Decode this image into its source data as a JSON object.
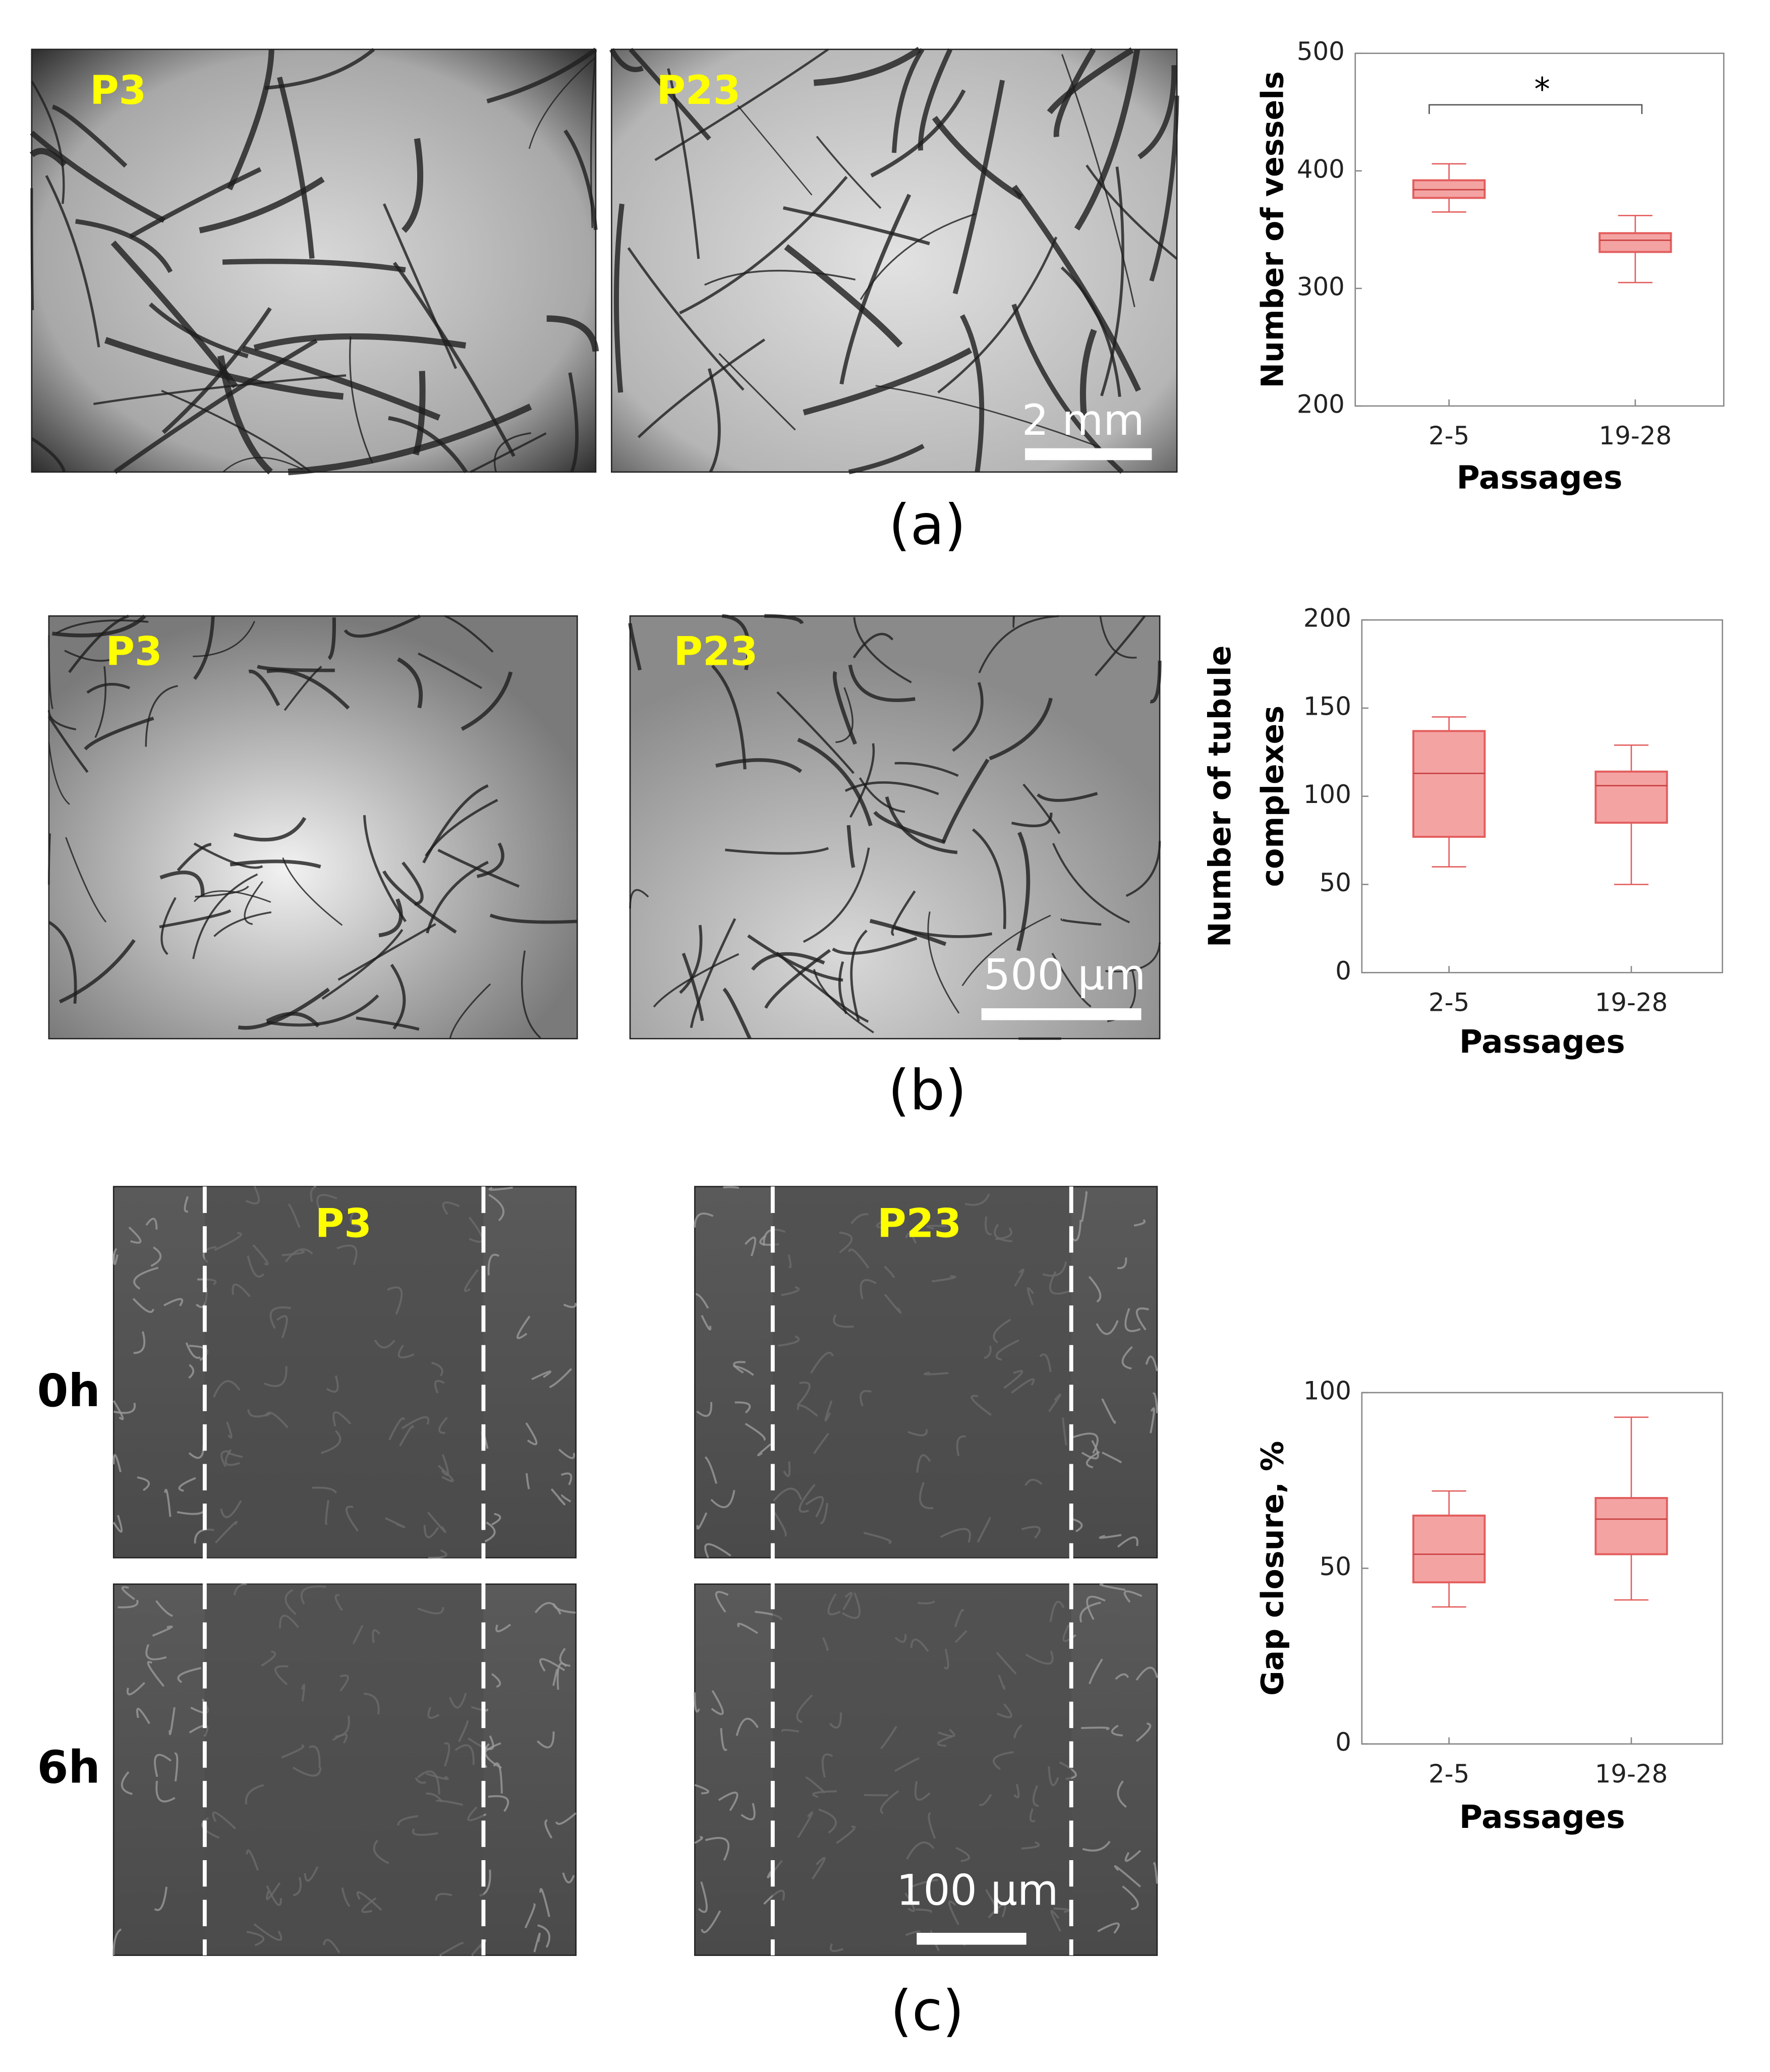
{
  "panels": {
    "a": {
      "label": "(a)",
      "images": [
        {
          "tag": "P3"
        },
        {
          "tag": "P23",
          "scale_bar": "2 mm"
        }
      ]
    },
    "b": {
      "label": "(b)",
      "images": [
        {
          "tag": "P3"
        },
        {
          "tag": "P23",
          "scale_bar": "500 µm"
        }
      ]
    },
    "c": {
      "label": "(c)",
      "rows": [
        "0h",
        "6h"
      ],
      "images": [
        {
          "tag": "P3"
        },
        {
          "tag": "P23",
          "scale_bar": "100 µm"
        }
      ]
    }
  },
  "chart_data": [
    {
      "type": "box",
      "categories": [
        "2-5",
        "19-28"
      ],
      "x_label": "Passages",
      "y_label": [
        "Number of vessels"
      ],
      "ylim": [
        200,
        500
      ],
      "yticks": [
        200,
        300,
        400,
        500
      ],
      "color": "#f4a3a3",
      "edge_color": "#e35d5d",
      "boxes": [
        {
          "whislo": 365,
          "q1": 377,
          "med": 384,
          "q3": 392,
          "whishi": 406
        },
        {
          "whislo": 305,
          "q1": 331,
          "med": 341,
          "q3": 347,
          "whishi": 362
        }
      ],
      "annotation": "*"
    },
    {
      "type": "box",
      "categories": [
        "2-5",
        "19-28"
      ],
      "x_label": "Passages",
      "y_label": [
        "Number of tubule",
        "complexes"
      ],
      "ylim": [
        0,
        200
      ],
      "yticks": [
        0,
        50,
        100,
        150,
        200
      ],
      "color": "#f4a3a3",
      "edge_color": "#e35d5d",
      "boxes": [
        {
          "whislo": 60,
          "q1": 77,
          "med": 113,
          "q3": 137,
          "whishi": 145
        },
        {
          "whislo": 50,
          "q1": 85,
          "med": 106,
          "q3": 114,
          "whishi": 129
        }
      ]
    },
    {
      "type": "box",
      "categories": [
        "2-5",
        "19-28"
      ],
      "x_label": "Passages",
      "y_label": [
        "Gap closure, %"
      ],
      "ylim": [
        0,
        100
      ],
      "yticks": [
        0,
        50,
        100
      ],
      "color": "#f4a3a3",
      "edge_color": "#e35d5d",
      "boxes": [
        {
          "whislo": 39,
          "q1": 46,
          "med": 54,
          "q3": 65,
          "whishi": 72
        },
        {
          "whislo": 41,
          "q1": 54,
          "med": 64,
          "q3": 70,
          "whishi": 93
        }
      ]
    }
  ]
}
